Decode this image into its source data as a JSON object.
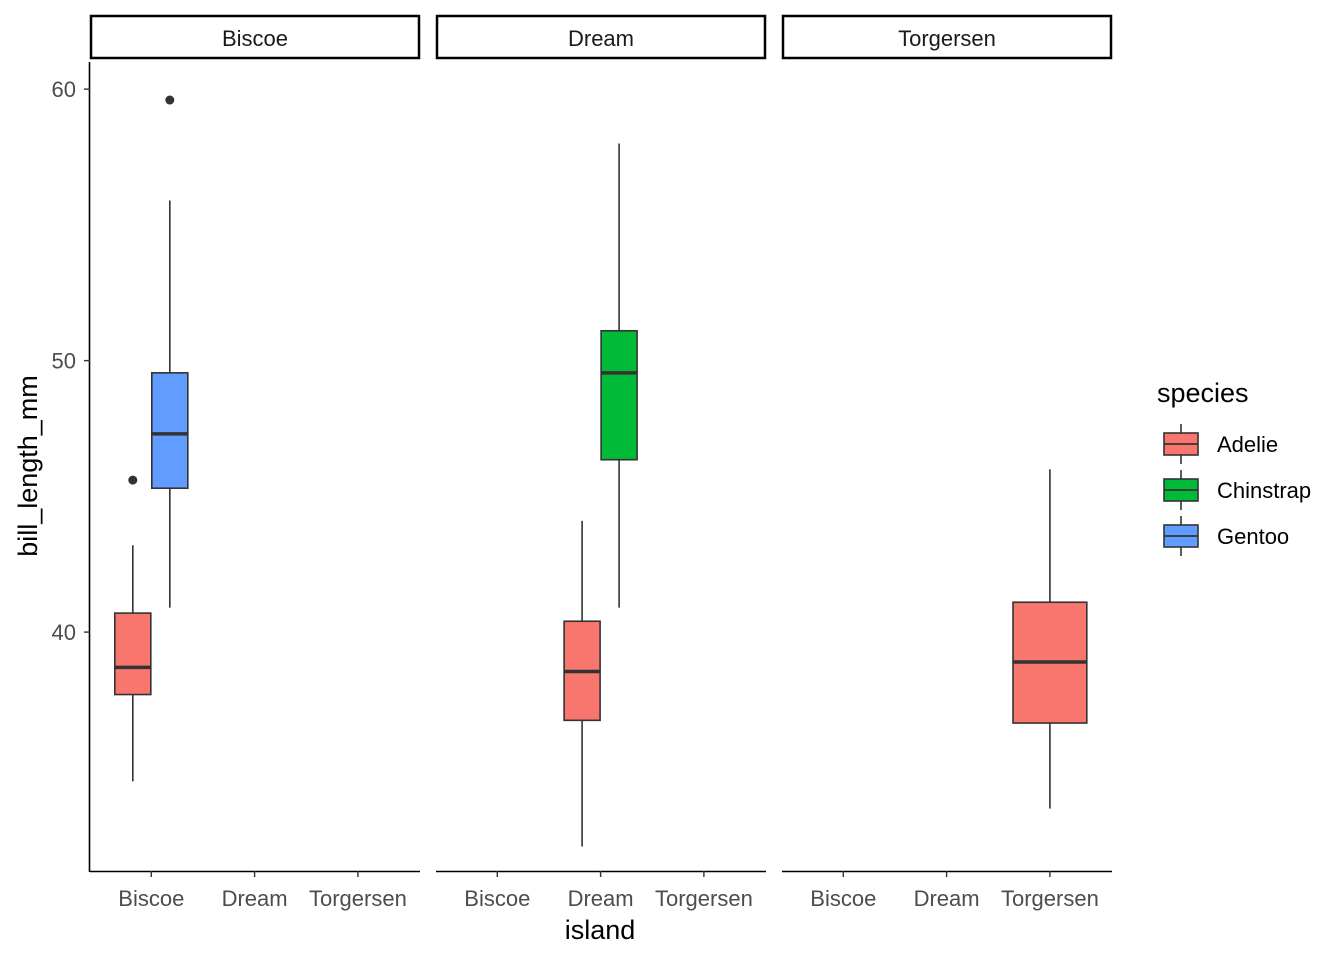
{
  "chart_data": {
    "type": "boxplot",
    "facet_variable": "island",
    "facets": [
      "Biscoe",
      "Dream",
      "Torgersen"
    ],
    "x_categories": [
      "Biscoe",
      "Dream",
      "Torgersen"
    ],
    "xlabel": "island",
    "ylabel": "bill_length_mm",
    "yticks": [
      40,
      50,
      60
    ],
    "ylim": [
      31.2,
      61.0
    ],
    "grid": false,
    "legend": {
      "title": "species",
      "position": "right",
      "entries": [
        {
          "name": "Adelie",
          "color": "#F8766D"
        },
        {
          "name": "Chinstrap",
          "color": "#00BA38"
        },
        {
          "name": "Gentoo",
          "color": "#619CFF"
        }
      ]
    },
    "boxes": [
      {
        "facet": "Biscoe",
        "x": "Biscoe",
        "species": "Adelie",
        "lower_whisker": 34.5,
        "q1": 37.7,
        "median": 38.7,
        "q3": 40.7,
        "upper_whisker": 43.2,
        "outliers": [
          45.6
        ]
      },
      {
        "facet": "Biscoe",
        "x": "Biscoe",
        "species": "Gentoo",
        "lower_whisker": 40.9,
        "q1": 45.3,
        "median": 47.3,
        "q3": 49.55,
        "upper_whisker": 55.9,
        "outliers": [
          59.6
        ]
      },
      {
        "facet": "Dream",
        "x": "Dream",
        "species": "Adelie",
        "lower_whisker": 32.1,
        "q1": 36.75,
        "median": 38.55,
        "q3": 40.4,
        "upper_whisker": 44.1,
        "outliers": []
      },
      {
        "facet": "Dream",
        "x": "Dream",
        "species": "Chinstrap",
        "lower_whisker": 40.9,
        "q1": 46.35,
        "median": 49.55,
        "q3": 51.1,
        "upper_whisker": 58.0,
        "outliers": []
      },
      {
        "facet": "Torgersen",
        "x": "Torgersen",
        "species": "Adelie",
        "lower_whisker": 33.5,
        "q1": 36.65,
        "median": 38.9,
        "q3": 41.1,
        "upper_whisker": 46.0,
        "outliers": []
      }
    ]
  }
}
